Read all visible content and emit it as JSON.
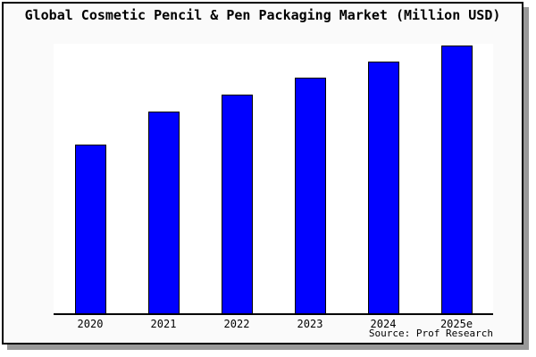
{
  "title": "Global Cosmetic Pencil & Pen Packaging Market (Million USD)",
  "source": "Source: Prof Research",
  "colors": {
    "bar_fill": "#0000ff",
    "bar_border": "#000000",
    "frame_border": "#000000",
    "frame_background": "#fafafa",
    "plot_background": "#ffffff",
    "shadow": "#999999"
  },
  "chart_data": {
    "type": "bar",
    "title": "Global Cosmetic Pencil & Pen Packaging Market (Million USD)",
    "categories": [
      "2020",
      "2021",
      "2022",
      "2023",
      "2024",
      "2025e"
    ],
    "values": [
      189,
      226,
      245,
      264,
      282,
      300
    ],
    "values_note": "No y-axis scale or data labels are visible in the image; values are relative bar heights measured in pixels against a 302px-tall plot area",
    "xlabel": "",
    "ylabel": "",
    "ylim": [
      0,
      302
    ],
    "grid": false,
    "legend": false,
    "source_annotation": "Source: Prof Research"
  }
}
